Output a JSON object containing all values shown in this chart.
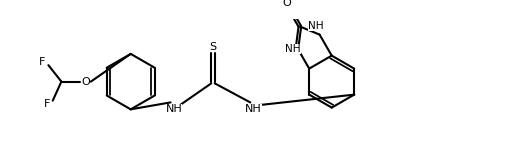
{
  "bg": "#ffffff",
  "lc": "#000000",
  "lw": 1.5,
  "fs": 8.0,
  "figsize": [
    5.3,
    1.44
  ],
  "dpi": 100,
  "xlim": [
    0,
    5.3
  ],
  "ylim": [
    0,
    1.44
  ]
}
